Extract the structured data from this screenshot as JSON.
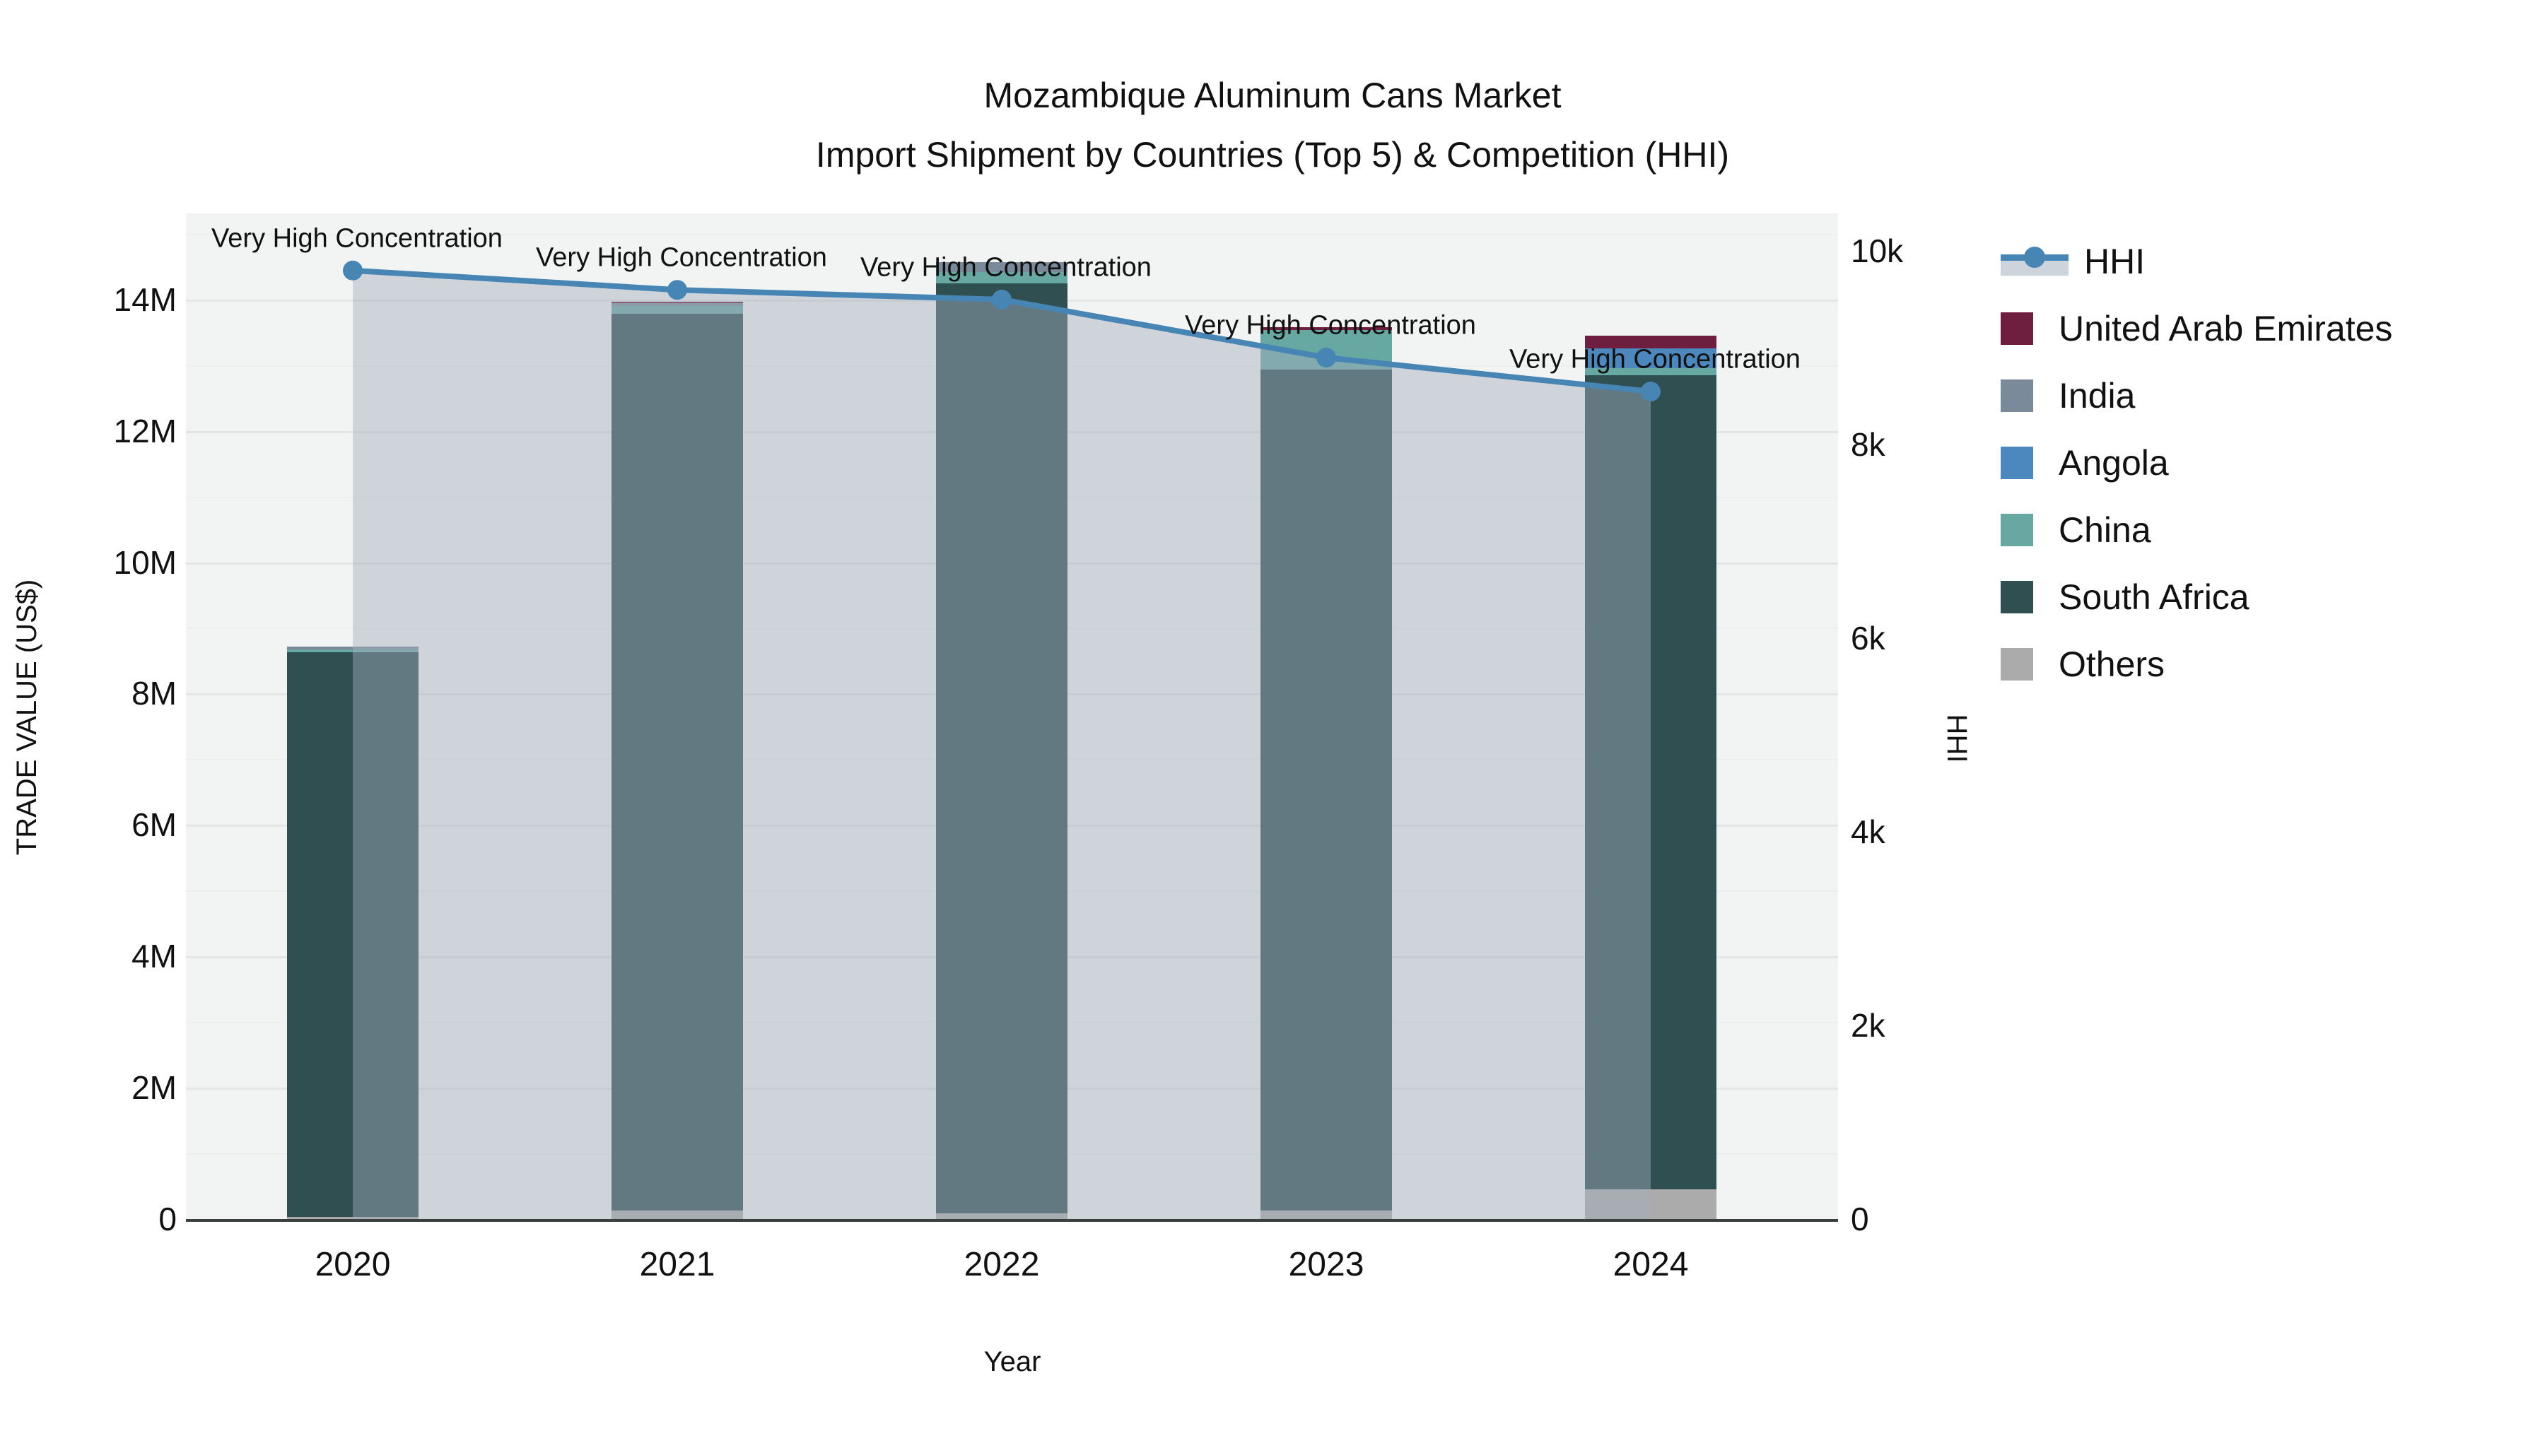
{
  "chart_data": {
    "type": "bar+line",
    "title": "Mozambique Aluminum Cans Market",
    "subtitle": "Import Shipment by Countries (Top 5) & Competition (HHI)",
    "xlabel": "Year",
    "ylabel_left": "TRADE VALUE (US$)",
    "ylabel_right": "HHI",
    "categories": [
      "2020",
      "2021",
      "2022",
      "2023",
      "2024"
    ],
    "bar_unit": "US$",
    "series": [
      {
        "name": "United Arab Emirates",
        "color": "#6e1e3e",
        "values": [
          0,
          30000,
          0,
          45000,
          200000
        ]
      },
      {
        "name": "India",
        "color": "#7b8a9b",
        "values": [
          50000,
          40000,
          150000,
          0,
          0
        ]
      },
      {
        "name": "Angola",
        "color": "#4c87be",
        "values": [
          0,
          0,
          0,
          0,
          300000
        ]
      },
      {
        "name": "China",
        "color": "#68a8a2",
        "values": [
          40000,
          120000,
          180000,
          600000,
          100000
        ]
      },
      {
        "name": "South Africa",
        "color": "#2f4f50",
        "values": [
          8600000,
          13650000,
          14150000,
          12800000,
          12400000
        ]
      },
      {
        "name": "Others",
        "color": "#ababab",
        "values": [
          30000,
          130000,
          90000,
          130000,
          450000
        ]
      }
    ],
    "stack_order_bottom_to_top": [
      "Others",
      "South Africa",
      "China",
      "Angola",
      "India",
      "United Arab Emirates"
    ],
    "line_series": {
      "name": "HHI",
      "color": "#4785b5",
      "fill_color": "rgba(163,174,188,0.45)",
      "values": [
        9800,
        9600,
        9500,
        8900,
        8550
      ]
    },
    "annotations": [
      "Very High Concentration",
      "Very High Concentration",
      "Very High Concentration",
      "Very High Concentration",
      "Very High Concentration"
    ],
    "left_ticks": [
      {
        "value": 0,
        "label": "0"
      },
      {
        "value": 2000000,
        "label": "2M"
      },
      {
        "value": 4000000,
        "label": "4M"
      },
      {
        "value": 6000000,
        "label": "6M"
      },
      {
        "value": 8000000,
        "label": "8M"
      },
      {
        "value": 10000000,
        "label": "10M"
      },
      {
        "value": 12000000,
        "label": "12M"
      },
      {
        "value": 14000000,
        "label": "14M"
      }
    ],
    "right_ticks": [
      {
        "value": 0,
        "label": "0"
      },
      {
        "value": 2000,
        "label": "2k"
      },
      {
        "value": 4000,
        "label": "4k"
      },
      {
        "value": 6000,
        "label": "6k"
      },
      {
        "value": 8000,
        "label": "8k"
      },
      {
        "value": 10000,
        "label": "10k"
      }
    ],
    "ylim_left": [
      0,
      15310000
    ],
    "ylim_right": [
      0,
      10390
    ],
    "grid": true,
    "legend_position": "right",
    "legend": [
      {
        "label": "HHI",
        "type": "line"
      },
      {
        "label": "United Arab Emirates",
        "type": "square",
        "color": "#6e1e3e"
      },
      {
        "label": "India",
        "type": "square",
        "color": "#7b8a9b"
      },
      {
        "label": "Angola",
        "type": "square",
        "color": "#4c87be"
      },
      {
        "label": "China",
        "type": "square",
        "color": "#68a8a2"
      },
      {
        "label": "South Africa",
        "type": "square",
        "color": "#2f4f50"
      },
      {
        "label": "Others",
        "type": "square",
        "color": "#ababab"
      }
    ],
    "plot_bg_color": "#f2f3f3"
  }
}
